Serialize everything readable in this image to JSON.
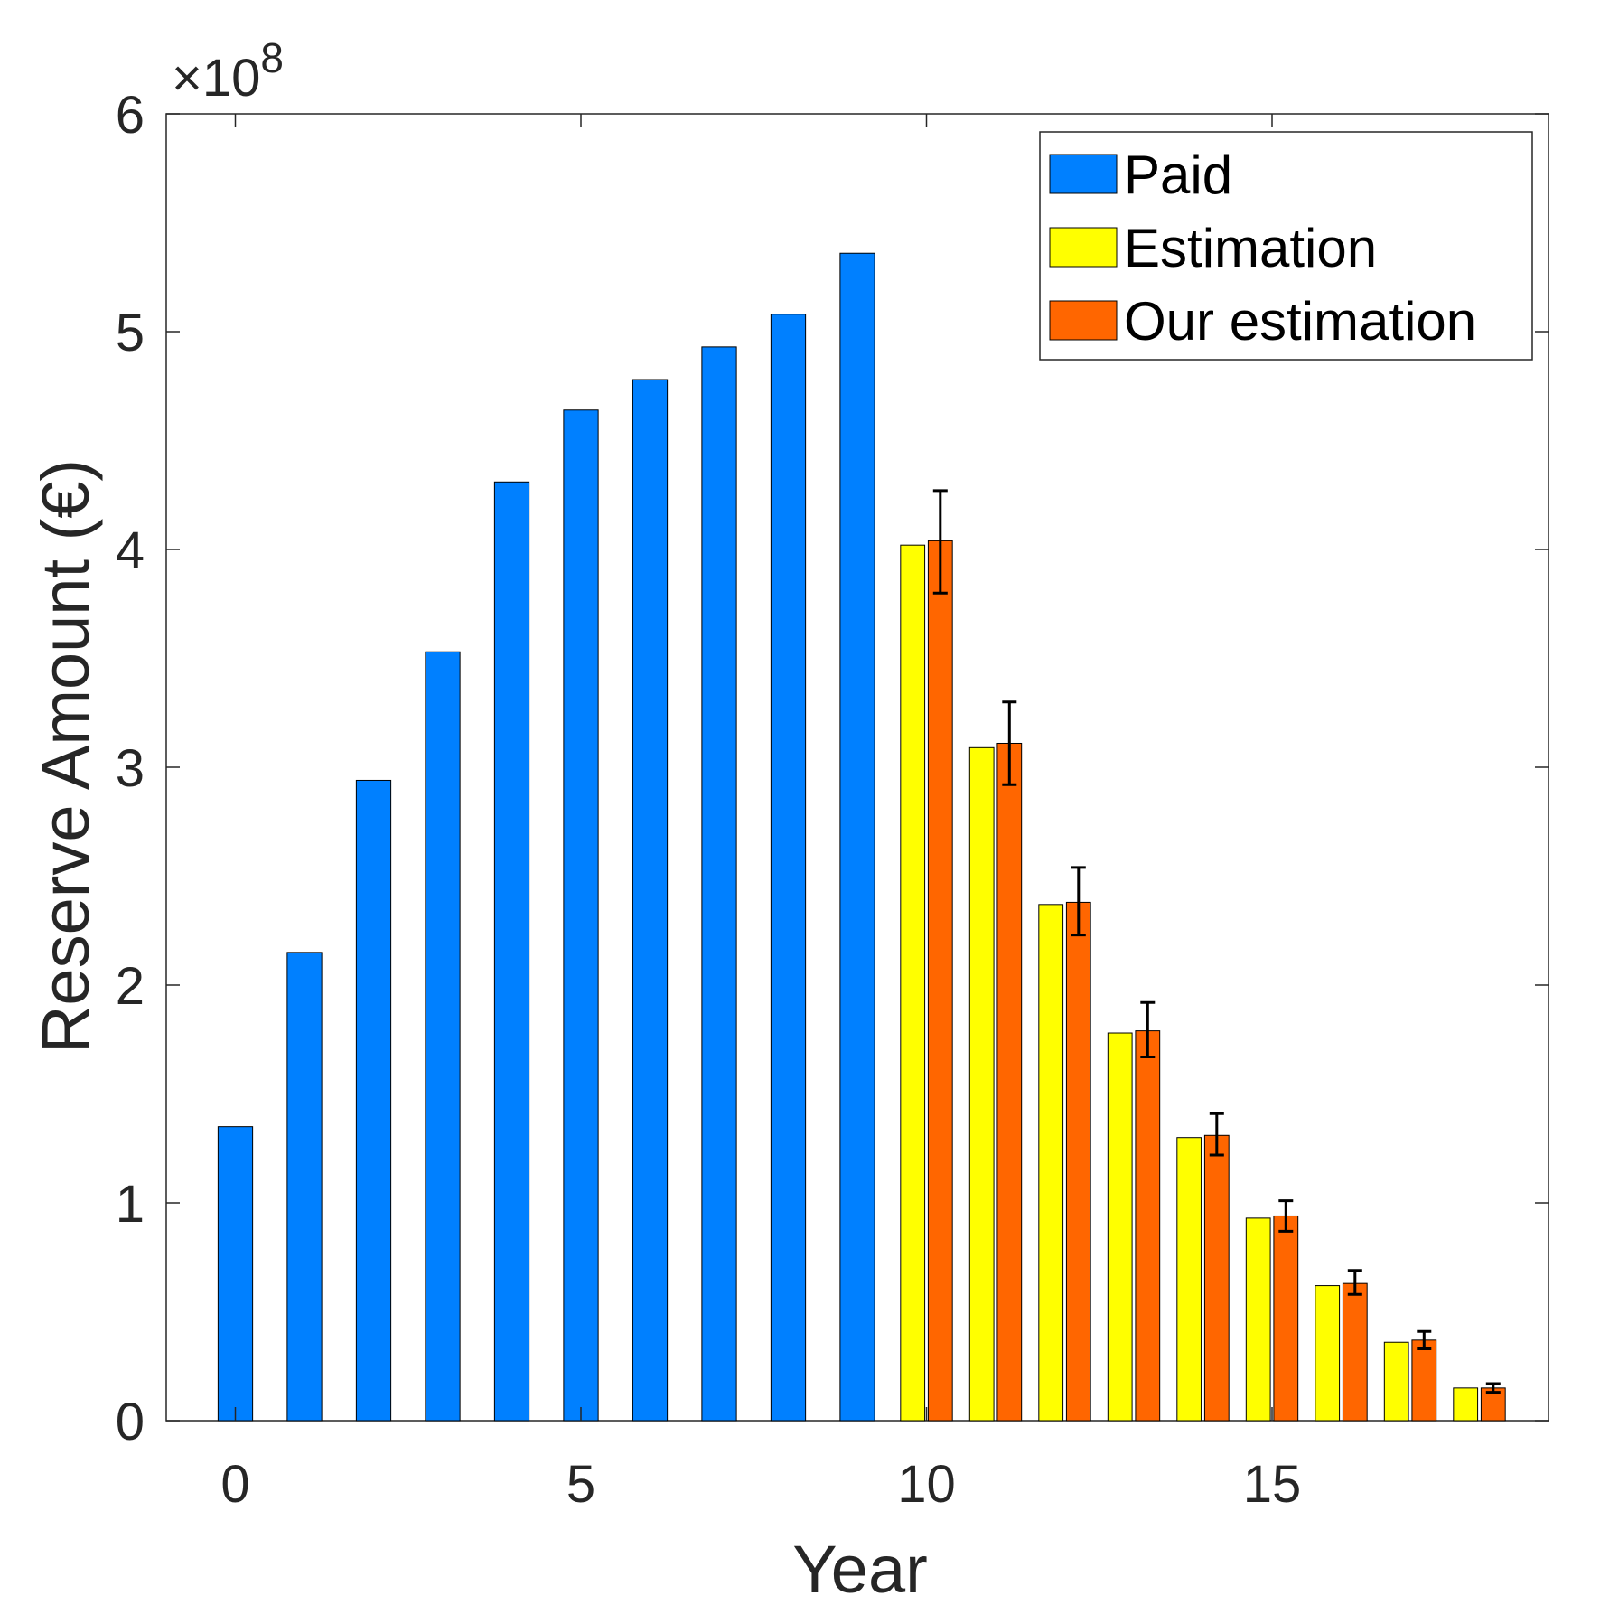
{
  "chart_data": {
    "type": "bar",
    "xlabel": "Year",
    "ylabel": "Reserve Amount (€)",
    "exponent": {
      "base": "×10",
      "power": "8"
    },
    "xlim": [
      -1,
      19
    ],
    "ylim": [
      0,
      6
    ],
    "xticks": [
      0,
      5,
      10,
      15
    ],
    "yticks": [
      0,
      1,
      2,
      3,
      4,
      5,
      6
    ],
    "grid": false,
    "legend_position": "top-right",
    "series": [
      {
        "name": "Paid",
        "color": "#0080ff",
        "x": [
          0,
          1,
          2,
          3,
          4,
          5,
          6,
          7,
          8,
          9
        ],
        "values": [
          1.35,
          2.15,
          2.94,
          3.53,
          4.31,
          4.64,
          4.78,
          4.93,
          5.08,
          5.36
        ]
      },
      {
        "name": "Estimation",
        "color": "#ffff00",
        "x": [
          10,
          11,
          12,
          13,
          14,
          15,
          16,
          17,
          18
        ],
        "values": [
          4.02,
          3.09,
          2.37,
          1.78,
          1.3,
          0.93,
          0.62,
          0.36,
          0.15
        ]
      },
      {
        "name": "Our estimation",
        "color": "#ff6600",
        "x": [
          10,
          11,
          12,
          13,
          14,
          15,
          16,
          17,
          18
        ],
        "values": [
          4.04,
          3.11,
          2.38,
          1.79,
          1.31,
          0.94,
          0.63,
          0.37,
          0.15
        ],
        "error_low": [
          3.8,
          2.92,
          2.23,
          1.67,
          1.22,
          0.87,
          0.58,
          0.33,
          0.13
        ],
        "error_high": [
          4.27,
          3.3,
          2.54,
          1.92,
          1.41,
          1.01,
          0.69,
          0.41,
          0.17
        ]
      }
    ]
  }
}
